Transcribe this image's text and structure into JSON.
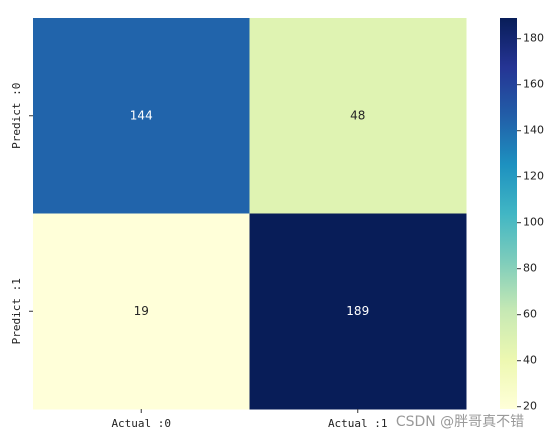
{
  "chart_data": {
    "type": "heatmap",
    "x_categories": [
      "Actual :0",
      "Actual :1"
    ],
    "y_categories": [
      "Predict :0",
      "Predict :1"
    ],
    "values": [
      [
        144,
        48
      ],
      [
        19,
        189
      ]
    ],
    "colormap": "YlGnBu",
    "colorbar_lim": [
      19,
      189
    ],
    "colorbar_ticks": [
      20,
      40,
      60,
      80,
      100,
      120,
      140,
      160,
      180
    ],
    "watermark": "CSDN @胖哥真不错"
  }
}
